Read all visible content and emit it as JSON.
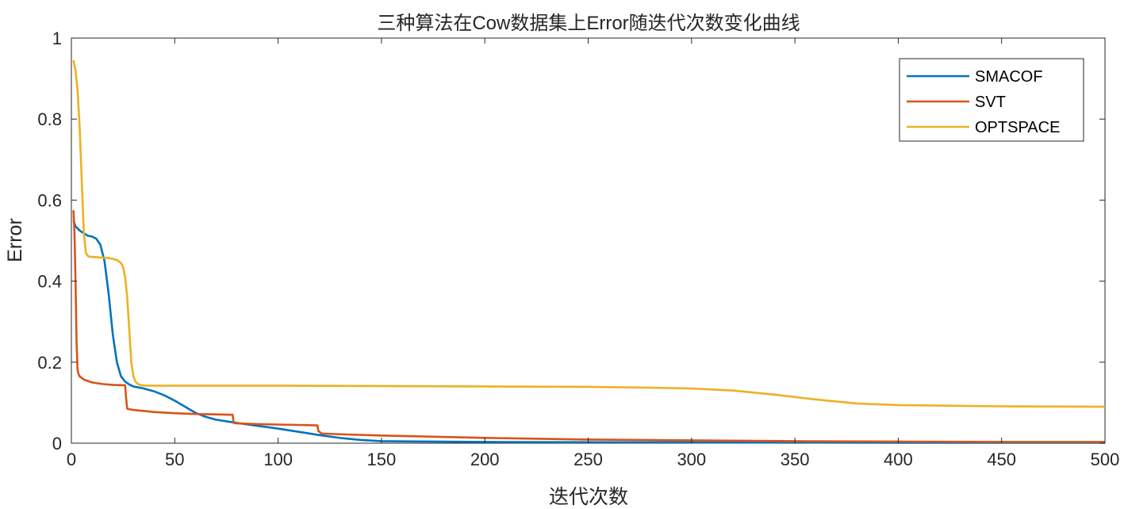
{
  "chart_data": {
    "type": "line",
    "title": "三种算法在Cow数据集上Error随迭代次数变化曲线",
    "xlabel": "迭代次数",
    "ylabel": "Error",
    "xlim": [
      0,
      500
    ],
    "ylim": [
      0,
      1
    ],
    "x_ticks": [
      "0",
      "50",
      "100",
      "150",
      "200",
      "250",
      "300",
      "350",
      "400",
      "450",
      "500"
    ],
    "y_ticks": [
      "0",
      "0.2",
      "0.4",
      "0.6",
      "0.8",
      "1"
    ],
    "grid": false,
    "legend_position": "top-right",
    "series": [
      {
        "name": "SMACOF",
        "color": "#0072BD",
        "x": [
          1,
          2,
          4,
          6,
          8,
          10,
          12,
          14,
          16,
          18,
          20,
          22,
          24,
          26,
          28,
          30,
          35,
          40,
          45,
          50,
          55,
          60,
          65,
          70,
          80,
          90,
          100,
          110,
          120,
          130,
          140,
          150,
          200,
          300,
          400,
          500
        ],
        "y": [
          0.55,
          0.535,
          0.525,
          0.518,
          0.512,
          0.51,
          0.505,
          0.49,
          0.45,
          0.37,
          0.27,
          0.2,
          0.165,
          0.152,
          0.145,
          0.14,
          0.135,
          0.128,
          0.118,
          0.105,
          0.09,
          0.075,
          0.065,
          0.058,
          0.05,
          0.043,
          0.036,
          0.028,
          0.02,
          0.013,
          0.008,
          0.005,
          0.003,
          0.002,
          0.001,
          0.001
        ]
      },
      {
        "name": "SVT",
        "color": "#D95319",
        "x": [
          1,
          1.5,
          2,
          2.5,
          3,
          3.5,
          4,
          6,
          10,
          15,
          20,
          26,
          26.5,
          27,
          30,
          40,
          50,
          60,
          70,
          78,
          78.5,
          80,
          90,
          100,
          110,
          119,
          119.5,
          121,
          130,
          150,
          200,
          250,
          300,
          350,
          400,
          450,
          500
        ],
        "y": [
          0.575,
          0.52,
          0.4,
          0.25,
          0.18,
          0.17,
          0.165,
          0.157,
          0.15,
          0.146,
          0.144,
          0.143,
          0.11,
          0.085,
          0.082,
          0.077,
          0.074,
          0.072,
          0.071,
          0.07,
          0.05,
          0.049,
          0.047,
          0.046,
          0.045,
          0.044,
          0.03,
          0.024,
          0.022,
          0.019,
          0.013,
          0.009,
          0.007,
          0.005,
          0.004,
          0.003,
          0.003
        ]
      },
      {
        "name": "OPTSPACE",
        "color": "#EDB120",
        "x": [
          1,
          2,
          3,
          4,
          5,
          6,
          7,
          8,
          9,
          10,
          12,
          15,
          18,
          20,
          22,
          24,
          25,
          26,
          27,
          28,
          29,
          30,
          31,
          32,
          33,
          35,
          40,
          50,
          100,
          150,
          200,
          250,
          280,
          300,
          320,
          340,
          360,
          380,
          400,
          450,
          500
        ],
        "y": [
          0.945,
          0.92,
          0.87,
          0.78,
          0.65,
          0.52,
          0.47,
          0.462,
          0.46,
          0.46,
          0.459,
          0.458,
          0.457,
          0.455,
          0.452,
          0.445,
          0.435,
          0.41,
          0.36,
          0.28,
          0.2,
          0.165,
          0.152,
          0.147,
          0.144,
          0.142,
          0.142,
          0.142,
          0.142,
          0.141,
          0.14,
          0.139,
          0.137,
          0.135,
          0.13,
          0.12,
          0.108,
          0.098,
          0.094,
          0.091,
          0.09
        ]
      }
    ]
  }
}
